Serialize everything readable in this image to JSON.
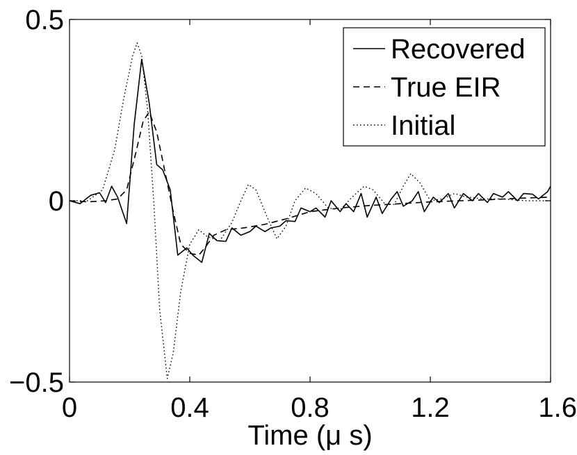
{
  "chart_data": {
    "type": "line",
    "title": "",
    "xlabel": "Time (μ s)",
    "ylabel": "",
    "xlim": [
      0,
      1.6
    ],
    "ylim": [
      -0.5,
      0.5
    ],
    "x_ticks": [
      "0",
      "0.4",
      "0.8",
      "1.2",
      "1.6"
    ],
    "y_ticks": [
      "−0.5",
      "0",
      "0.5"
    ],
    "grid": false,
    "legend_position": "top-right",
    "series": [
      {
        "name": "Recovered",
        "style": "solid",
        "points": [
          [
            0.0,
            0.0
          ],
          [
            0.035,
            -0.008
          ],
          [
            0.07,
            0.015
          ],
          [
            0.1,
            0.022
          ],
          [
            0.12,
            -0.005
          ],
          [
            0.14,
            0.04
          ],
          [
            0.16,
            0.01
          ],
          [
            0.19,
            -0.063
          ],
          [
            0.215,
            0.21
          ],
          [
            0.24,
            0.39
          ],
          [
            0.265,
            0.27
          ],
          [
            0.29,
            0.1
          ],
          [
            0.31,
            0.085
          ],
          [
            0.335,
            0.03
          ],
          [
            0.36,
            -0.15
          ],
          [
            0.39,
            -0.13
          ],
          [
            0.41,
            -0.15
          ],
          [
            0.44,
            -0.17
          ],
          [
            0.465,
            -0.09
          ],
          [
            0.49,
            -0.11
          ],
          [
            0.52,
            -0.112
          ],
          [
            0.54,
            -0.075
          ],
          [
            0.57,
            -0.095
          ],
          [
            0.6,
            -0.085
          ],
          [
            0.62,
            -0.07
          ],
          [
            0.65,
            -0.085
          ],
          [
            0.67,
            -0.075
          ],
          [
            0.7,
            -0.07
          ],
          [
            0.72,
            -0.055
          ],
          [
            0.75,
            -0.057
          ],
          [
            0.77,
            -0.02
          ],
          [
            0.8,
            -0.03
          ],
          [
            0.82,
            -0.02
          ],
          [
            0.85,
            -0.045
          ],
          [
            0.87,
            0.0
          ],
          [
            0.9,
            -0.03
          ],
          [
            0.92,
            -0.008
          ],
          [
            0.945,
            -0.03
          ],
          [
            0.97,
            0.02
          ],
          [
            0.99,
            -0.045
          ],
          [
            1.02,
            0.01
          ],
          [
            1.04,
            -0.035
          ],
          [
            1.07,
            0.005
          ],
          [
            1.09,
            0.025
          ],
          [
            1.11,
            -0.015
          ],
          [
            1.14,
            0.0
          ],
          [
            1.16,
            0.025
          ],
          [
            1.18,
            -0.03
          ],
          [
            1.21,
            0.01
          ],
          [
            1.23,
            -0.005
          ],
          [
            1.26,
            0.02
          ],
          [
            1.28,
            -0.02
          ],
          [
            1.31,
            0.02
          ],
          [
            1.34,
            0.0
          ],
          [
            1.36,
            0.02
          ],
          [
            1.39,
            -0.005
          ],
          [
            1.41,
            0.02
          ],
          [
            1.44,
            0.01
          ],
          [
            1.46,
            0.025
          ],
          [
            1.49,
            0.0
          ],
          [
            1.51,
            0.02
          ],
          [
            1.54,
            0.018
          ],
          [
            1.56,
            0.005
          ],
          [
            1.59,
            0.025
          ],
          [
            1.6,
            0.04
          ]
        ]
      },
      {
        "name": "True EIR",
        "style": "dashed",
        "points": [
          [
            0.0,
            0.0
          ],
          [
            0.06,
            -0.003
          ],
          [
            0.12,
            0.0
          ],
          [
            0.16,
            0.005
          ],
          [
            0.19,
            0.03
          ],
          [
            0.22,
            0.13
          ],
          [
            0.245,
            0.22
          ],
          [
            0.265,
            0.245
          ],
          [
            0.29,
            0.19
          ],
          [
            0.32,
            0.07
          ],
          [
            0.345,
            -0.03
          ],
          [
            0.37,
            -0.12
          ],
          [
            0.4,
            -0.145
          ],
          [
            0.43,
            -0.15
          ],
          [
            0.45,
            -0.13
          ],
          [
            0.48,
            -0.095
          ],
          [
            0.52,
            -0.08
          ],
          [
            0.58,
            -0.075
          ],
          [
            0.65,
            -0.065
          ],
          [
            0.72,
            -0.05
          ],
          [
            0.8,
            -0.03
          ],
          [
            0.9,
            -0.02
          ],
          [
            1.0,
            -0.013
          ],
          [
            1.1,
            -0.008
          ],
          [
            1.2,
            -0.003
          ],
          [
            1.3,
            0.0
          ],
          [
            1.4,
            0.003
          ],
          [
            1.5,
            0.007
          ],
          [
            1.6,
            0.01
          ]
        ]
      },
      {
        "name": "Initial",
        "style": "dotted",
        "points": [
          [
            0.0,
            0.0
          ],
          [
            0.06,
            0.0
          ],
          [
            0.11,
            0.03
          ],
          [
            0.15,
            0.14
          ],
          [
            0.18,
            0.28
          ],
          [
            0.21,
            0.4
          ],
          [
            0.225,
            0.435
          ],
          [
            0.24,
            0.4
          ],
          [
            0.26,
            0.25
          ],
          [
            0.28,
            0.0
          ],
          [
            0.3,
            -0.3
          ],
          [
            0.325,
            -0.49
          ],
          [
            0.345,
            -0.42
          ],
          [
            0.37,
            -0.25
          ],
          [
            0.4,
            -0.12
          ],
          [
            0.43,
            -0.08
          ],
          [
            0.46,
            -0.1
          ],
          [
            0.5,
            -0.11
          ],
          [
            0.54,
            -0.06
          ],
          [
            0.57,
            0.0
          ],
          [
            0.595,
            0.045
          ],
          [
            0.62,
            0.03
          ],
          [
            0.66,
            -0.05
          ],
          [
            0.69,
            -0.105
          ],
          [
            0.72,
            -0.07
          ],
          [
            0.75,
            0.0
          ],
          [
            0.785,
            0.035
          ],
          [
            0.82,
            0.02
          ],
          [
            0.86,
            -0.02
          ],
          [
            0.9,
            -0.025
          ],
          [
            0.94,
            0.01
          ],
          [
            0.98,
            0.04
          ],
          [
            1.01,
            0.03
          ],
          [
            1.05,
            -0.01
          ],
          [
            1.08,
            -0.01
          ],
          [
            1.11,
            0.04
          ],
          [
            1.135,
            0.075
          ],
          [
            1.165,
            0.05
          ],
          [
            1.2,
            0.0
          ],
          [
            1.24,
            0.005
          ],
          [
            1.28,
            0.02
          ],
          [
            1.32,
            0.01
          ],
          [
            1.38,
            0.005
          ],
          [
            1.44,
            0.005
          ],
          [
            1.52,
            0.0
          ],
          [
            1.6,
            0.0
          ]
        ]
      }
    ]
  }
}
